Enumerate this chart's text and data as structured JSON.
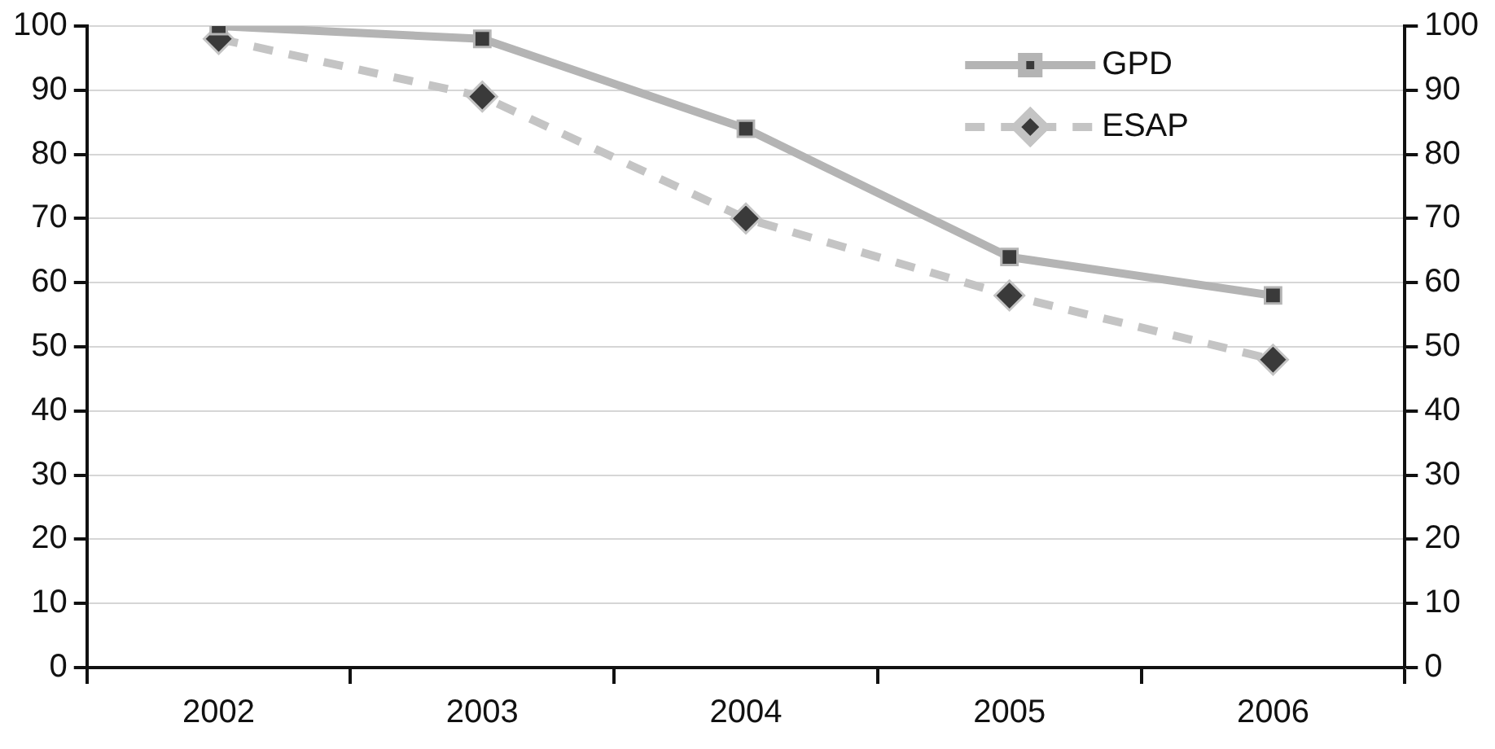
{
  "chart_data": {
    "type": "line",
    "categories": [
      "2002",
      "2003",
      "2004",
      "2005",
      "2006"
    ],
    "series": [
      {
        "name": "GPD",
        "color": "#b4b4b4",
        "values": [
          100,
          98,
          84,
          64,
          58
        ],
        "marker": "square",
        "line_style": "solid"
      },
      {
        "name": "ESAP",
        "color": "#c4c4c4",
        "values": [
          98,
          89,
          70,
          58,
          48
        ],
        "marker": "diamond",
        "line_style": "dashed"
      }
    ],
    "ylim": [
      0,
      100
    ],
    "yticks": [
      0,
      10,
      20,
      30,
      40,
      50,
      60,
      70,
      80,
      90,
      100
    ],
    "y2lim": [
      0,
      100
    ],
    "y2ticks": [
      0,
      10,
      20,
      30,
      40,
      50,
      60,
      70,
      80,
      90,
      100
    ],
    "grid": "y",
    "legend": "top right"
  }
}
